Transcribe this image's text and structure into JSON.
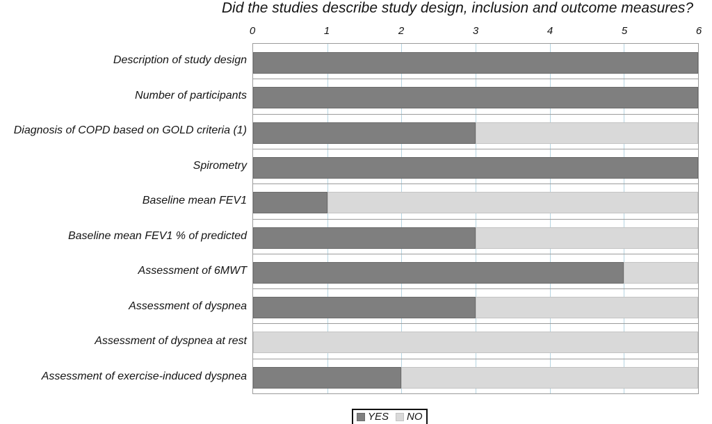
{
  "chart_data": {
    "type": "bar",
    "orientation": "horizontal",
    "stacked": true,
    "title": "Did the studies describe study design, inclusion and outcome measures?",
    "categories": [
      "Description of study design",
      "Number of participants",
      "Diagnosis of COPD based on GOLD criteria (1)",
      "Spirometry",
      "Baseline mean FEV1",
      "Baseline mean FEV1 % of predicted",
      "Assessment of 6MWT",
      "Assessment of dyspnea",
      "Assessment of dyspnea at rest",
      "Assessment of exercise-induced dyspnea"
    ],
    "series": [
      {
        "name": "YES",
        "color": "#7f7f7f",
        "border_color": "#6b6b6b",
        "values": [
          6,
          6,
          3,
          6,
          1,
          3,
          5,
          3,
          0,
          2
        ]
      },
      {
        "name": "NO",
        "color": "#d9d9d9",
        "border_color": "#c3c3c3",
        "values": [
          0,
          0,
          3,
          0,
          5,
          3,
          1,
          3,
          6,
          4
        ]
      }
    ],
    "xlim": [
      0,
      6
    ],
    "x_ticks": [
      0,
      1,
      2,
      3,
      4,
      5,
      6
    ],
    "grid": {
      "vertical_gridlines": true,
      "horizontal_band_separators": true
    },
    "legend_position": "bottom-center"
  },
  "colors": {
    "bar_yes": "#7f7f7f",
    "bar_no": "#d9d9d9",
    "vertical_gridline": "#b5d4e1",
    "band_separator": "#9b9b9b",
    "plot_border": "#9b9b9b",
    "background": "#ffffff",
    "text": "#141414"
  }
}
